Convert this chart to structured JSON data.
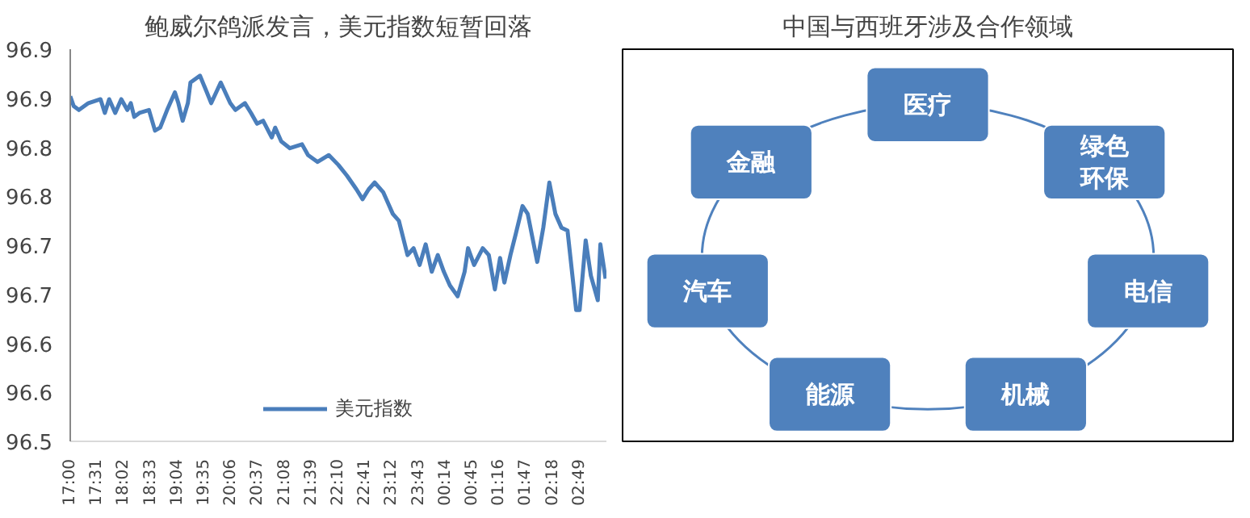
{
  "chart_data": [
    {
      "type": "line",
      "title": "鲍威尔鸽派发言，美元指数短暂回落",
      "legend": "bottom",
      "grid": false,
      "marker": "none",
      "line_style": "solid",
      "xlim": [
        "2000-01-01T17:00",
        "2000-01-02T03:20"
      ],
      "ylim": [
        96.5,
        96.9
      ],
      "xticks": [
        {
          "value": "2000-01-01T17:00",
          "label": "17:00"
        },
        {
          "value": "2000-01-01T17:31",
          "label": "17:31"
        },
        {
          "value": "2000-01-01T18:02",
          "label": "18:02"
        },
        {
          "value": "2000-01-01T18:33",
          "label": "18:33"
        },
        {
          "value": "2000-01-01T19:04",
          "label": "19:04"
        },
        {
          "value": "2000-01-01T19:35",
          "label": "19:35"
        },
        {
          "value": "2000-01-01T20:06",
          "label": "20:06"
        },
        {
          "value": "2000-01-01T20:37",
          "label": "20:37"
        },
        {
          "value": "2000-01-01T21:08",
          "label": "21:08"
        },
        {
          "value": "2000-01-01T21:39",
          "label": "21:39"
        },
        {
          "value": "2000-01-01T22:10",
          "label": "22:10"
        },
        {
          "value": "2000-01-01T22:41",
          "label": "22:41"
        },
        {
          "value": "2000-01-01T23:12",
          "label": "23:12"
        },
        {
          "value": "2000-01-01T23:43",
          "label": "23:43"
        },
        {
          "value": "2000-01-02T00:14",
          "label": "00:14"
        },
        {
          "value": "2000-01-02T00:45",
          "label": "00:45"
        },
        {
          "value": "2000-01-02T01:16",
          "label": "01:16"
        },
        {
          "value": "2000-01-02T01:47",
          "label": "01:47"
        },
        {
          "value": "2000-01-02T02:18",
          "label": "02:18"
        },
        {
          "value": "2000-01-02T02:49",
          "label": "02:49"
        }
      ],
      "yticks": [
        96.5,
        {
          "value": 96.55,
          "label": "96.6"
        },
        96.6,
        {
          "value": 96.65,
          "label": "96.7"
        },
        96.7,
        {
          "value": 96.75,
          "label": "96.8"
        },
        96.8,
        {
          "value": 96.85,
          "label": "96.9"
        },
        96.9
      ],
      "series": [
        {
          "name": "美元指数",
          "color": "#4a7ebb",
          "x": [
            "2000-01-01T17:00",
            "2000-01-01T17:04",
            "2000-01-01T17:10",
            "2000-01-01T17:21",
            "2000-01-01T17:35",
            "2000-01-01T17:40",
            "2000-01-01T17:45",
            "2000-01-01T17:52",
            "2000-01-01T17:59",
            "2000-01-01T18:06",
            "2000-01-01T18:10",
            "2000-01-01T18:14",
            "2000-01-01T18:20",
            "2000-01-01T18:31",
            "2000-01-01T18:38",
            "2000-01-01T18:44",
            "2000-01-01T18:52",
            "2000-01-01T19:01",
            "2000-01-01T19:05",
            "2000-01-01T19:10",
            "2000-01-01T19:16",
            "2000-01-01T19:19",
            "2000-01-01T19:30",
            "2000-01-01T19:38",
            "2000-01-01T19:43",
            "2000-01-01T19:54",
            "2000-01-01T20:05",
            "2000-01-01T20:11",
            "2000-01-01T20:22",
            "2000-01-01T20:29",
            "2000-01-01T20:36",
            "2000-01-01T20:43",
            "2000-01-01T20:53",
            "2000-01-01T20:57",
            "2000-01-01T21:04",
            "2000-01-01T21:14",
            "2000-01-01T21:28",
            "2000-01-01T21:35",
            "2000-01-01T21:46",
            "2000-01-01T21:59",
            "2000-01-01T22:10",
            "2000-01-01T22:20",
            "2000-01-01T22:31",
            "2000-01-01T22:38",
            "2000-01-01T22:45",
            "2000-01-01T22:52",
            "2000-01-01T23:02",
            "2000-01-01T23:13",
            "2000-01-01T23:20",
            "2000-01-01T23:30",
            "2000-01-01T23:37",
            "2000-01-01T23:44",
            "2000-01-01T23:51",
            "2000-01-01T23:58",
            "2000-01-02T00:05",
            "2000-01-02T00:12",
            "2000-01-02T00:19",
            "2000-01-02T00:28",
            "2000-01-02T00:36",
            "2000-01-02T00:40",
            "2000-01-02T00:47",
            "2000-01-02T00:57",
            "2000-01-02T01:04",
            "2000-01-02T01:11",
            "2000-01-02T01:17",
            "2000-01-02T01:22",
            "2000-01-02T01:29",
            "2000-01-02T01:35",
            "2000-01-02T01:43",
            "2000-01-02T01:49",
            "2000-01-02T02:00",
            "2000-01-02T02:07",
            "2000-01-02T02:14",
            "2000-01-02T02:21",
            "2000-01-02T02:28",
            "2000-01-02T02:35",
            "2000-01-02T02:45",
            "2000-01-02T02:49",
            "2000-01-02T02:56",
            "2000-01-02T03:02",
            "2000-01-02T03:10",
            "2000-01-02T03:13",
            "2000-01-02T03:19"
          ],
          "values": [
            96.852,
            96.842,
            96.838,
            96.845,
            96.849,
            96.835,
            96.849,
            96.835,
            96.849,
            96.838,
            96.845,
            96.831,
            96.835,
            96.838,
            96.817,
            96.82,
            96.838,
            96.856,
            96.845,
            96.827,
            96.845,
            96.866,
            96.873,
            96.856,
            96.845,
            96.866,
            96.845,
            96.838,
            96.845,
            96.835,
            96.824,
            96.827,
            96.81,
            96.82,
            96.806,
            96.799,
            96.803,
            96.792,
            96.785,
            96.792,
            96.782,
            96.771,
            96.757,
            96.747,
            96.757,
            96.764,
            96.754,
            96.732,
            96.725,
            96.69,
            96.697,
            96.68,
            96.701,
            96.673,
            96.69,
            96.673,
            96.659,
            96.648,
            96.673,
            96.697,
            96.68,
            96.697,
            96.69,
            96.655,
            96.687,
            96.662,
            96.69,
            96.711,
            96.74,
            96.732,
            96.683,
            96.718,
            96.764,
            96.732,
            96.718,
            96.715,
            96.634,
            96.634,
            96.705,
            96.669,
            96.644,
            96.701,
            96.666
          ]
        }
      ]
    },
    {
      "type": "other",
      "title": "中国与西班牙涉及合作领域",
      "annotations": [
        "医疗",
        "绿色环保",
        "电信",
        "机械",
        "能源",
        "汽车",
        "金融"
      ]
    }
  ]
}
